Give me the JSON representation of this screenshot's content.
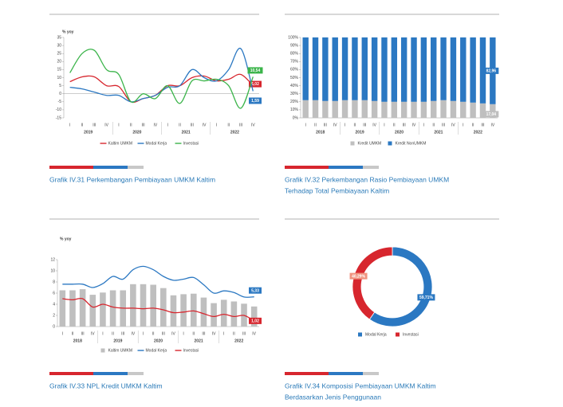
{
  "chart_data": [
    {
      "type": "line",
      "title": [
        "Grafik IV.31 Perkembangan Pembiayaan UMKM Kaltim"
      ],
      "y_label": "% yoy",
      "categories": [
        "I",
        "II",
        "III",
        "IV",
        "I",
        "II",
        "III",
        "IV",
        "I",
        "II",
        "III",
        "IV",
        "I",
        "II",
        "III",
        "IV"
      ],
      "years": [
        "2019",
        "2020",
        "2021",
        "2022"
      ],
      "ylim": [
        -15,
        35
      ],
      "yticks": [
        -15,
        -10,
        -5,
        0,
        5,
        10,
        15,
        20,
        25,
        30,
        35
      ],
      "series": [
        {
          "name": "Kaltim UMKM",
          "color": "#d7262e",
          "values": [
            7.5,
            10.5,
            10.5,
            5,
            4.5,
            -5,
            -3,
            -1,
            5,
            5,
            10,
            11,
            8,
            9,
            12,
            5.02
          ],
          "value_labels": [
            null,
            null,
            null,
            null,
            null,
            null,
            null,
            null,
            null,
            null,
            null,
            null,
            null,
            null,
            null,
            "5,02"
          ]
        },
        {
          "name": "Modal Kerja",
          "color": "#2b78c2",
          "values": [
            4,
            3,
            1,
            -1,
            -1,
            -5,
            -3,
            -1,
            4,
            5,
            15,
            10,
            8,
            15,
            28,
            1.59
          ],
          "value_labels": [
            null,
            null,
            null,
            null,
            null,
            null,
            null,
            null,
            null,
            null,
            null,
            null,
            null,
            null,
            null,
            "1,59"
          ]
        },
        {
          "name": "Investasi",
          "color": "#3bb44a",
          "values": [
            13,
            25,
            27,
            15,
            12,
            -5,
            0,
            -3,
            5,
            -6,
            8,
            8,
            9,
            5,
            -9,
            10.54
          ],
          "value_labels": [
            null,
            null,
            null,
            null,
            null,
            null,
            null,
            null,
            null,
            null,
            null,
            null,
            null,
            null,
            null,
            "10,54"
          ]
        }
      ]
    },
    {
      "type": "bar",
      "stacked": true,
      "title": [
        "Grafik IV.32 Perkembangan Rasio Pembiayaan UMKM",
        "Terhadap Total Pembiayaan Kaltim"
      ],
      "categories": [
        "I",
        "II",
        "III",
        "IV",
        "I",
        "II",
        "III",
        "IV",
        "I",
        "II",
        "III",
        "IV",
        "I",
        "II",
        "III",
        "IV",
        "I",
        "II",
        "III",
        "IV"
      ],
      "years": [
        "2018",
        "2019",
        "2020",
        "2021",
        "2022"
      ],
      "ylim": [
        0,
        100
      ],
      "yticks": [
        {
          "value": 0,
          "label": "0%"
        },
        {
          "value": 10,
          "label": "10%"
        },
        {
          "value": 20,
          "label": "20%"
        },
        {
          "value": 30,
          "label": "30%"
        },
        {
          "value": 40,
          "label": "40%"
        },
        {
          "value": 50,
          "label": "50%"
        },
        {
          "value": 60,
          "label": "60%"
        },
        {
          "value": 70,
          "label": "70%"
        },
        {
          "value": 80,
          "label": "80%"
        },
        {
          "value": 90,
          "label": "90%"
        },
        {
          "value": 100,
          "label": "100%"
        }
      ],
      "series": [
        {
          "name": "Kredit UMKM",
          "color": "#bfbfbf",
          "values": [
            22,
            22,
            21,
            21,
            22,
            22,
            22,
            21,
            20,
            20,
            20,
            20,
            20,
            21,
            22,
            21,
            20,
            19,
            18,
            17.04
          ],
          "value_labels": [
            null,
            null,
            null,
            null,
            null,
            null,
            null,
            null,
            null,
            null,
            null,
            null,
            null,
            null,
            null,
            null,
            null,
            null,
            null,
            "17,04"
          ]
        },
        {
          "name": "Kredit NonUMKM",
          "color": "#2b78c2",
          "values": [
            78,
            78,
            79,
            79,
            78,
            78,
            78,
            79,
            80,
            80,
            80,
            80,
            80,
            79,
            78,
            79,
            80,
            81,
            82,
            82.96
          ],
          "value_labels": [
            null,
            null,
            null,
            null,
            null,
            null,
            null,
            null,
            null,
            null,
            null,
            null,
            null,
            null,
            null,
            null,
            null,
            null,
            null,
            "82,96"
          ]
        }
      ]
    },
    {
      "type": "combo",
      "title": [
        "Grafik IV.33 NPL Kredit UMKM Kaltim"
      ],
      "y_label": "% yoy",
      "categories": [
        "I",
        "II",
        "III",
        "IV",
        "I",
        "II",
        "III",
        "IV",
        "I",
        "II",
        "III",
        "IV",
        "I",
        "II",
        "III",
        "IV",
        "I",
        "II",
        "III",
        "IV"
      ],
      "years": [
        "2018",
        "2019",
        "2020",
        "2021",
        "2022"
      ],
      "ylim": [
        0,
        12
      ],
      "yticks": [
        0,
        2,
        4,
        6,
        8,
        10,
        12
      ],
      "series": [
        {
          "name": "Kaltim UMKM",
          "type": "bar",
          "color": "#bfbfbf",
          "values": [
            6.5,
            6.5,
            6.7,
            5.7,
            6.1,
            6.5,
            6.5,
            7.6,
            7.6,
            7.5,
            6.9,
            5.6,
            5.8,
            5.9,
            5.2,
            4.2,
            4.8,
            4.5,
            4.1,
            3.6
          ]
        },
        {
          "name": "Modal Kerja",
          "type": "line",
          "color": "#2b78c2",
          "values": [
            7.6,
            7.6,
            7.6,
            7.0,
            7.7,
            9.0,
            8.5,
            10.2,
            10.8,
            10.2,
            9.0,
            8.3,
            8.5,
            8.8,
            7.5,
            6.0,
            6.4,
            6.1,
            5.3,
            5.33
          ],
          "value_labels": [
            null,
            null,
            null,
            null,
            null,
            null,
            null,
            null,
            null,
            null,
            null,
            null,
            null,
            null,
            null,
            null,
            null,
            null,
            null,
            "5,33"
          ]
        },
        {
          "name": "Investasi",
          "type": "line",
          "color": "#d7262e",
          "values": [
            5.0,
            4.8,
            5.0,
            3.5,
            4.0,
            3.5,
            3.3,
            3.3,
            3.2,
            3.3,
            3.0,
            2.5,
            2.6,
            2.8,
            2.3,
            1.8,
            2.2,
            1.8,
            2.0,
            1.02
          ],
          "value_labels": [
            null,
            null,
            null,
            null,
            null,
            null,
            null,
            null,
            null,
            null,
            null,
            null,
            null,
            null,
            null,
            null,
            null,
            null,
            null,
            "1,02"
          ]
        }
      ]
    },
    {
      "type": "pie",
      "donut": true,
      "title": [
        "Grafik IV.34 Komposisi Pembiayaan UMKM Kaltim",
        "Berdasarkan Jenis Penggunaan"
      ],
      "categories": [
        "Modal Kerja",
        "Investasi"
      ],
      "values": [
        59.71,
        40.29
      ],
      "value_labels": [
        "59,71%",
        "40,29%"
      ],
      "colors": [
        "#2b78c2",
        "#d7262e"
      ]
    }
  ]
}
